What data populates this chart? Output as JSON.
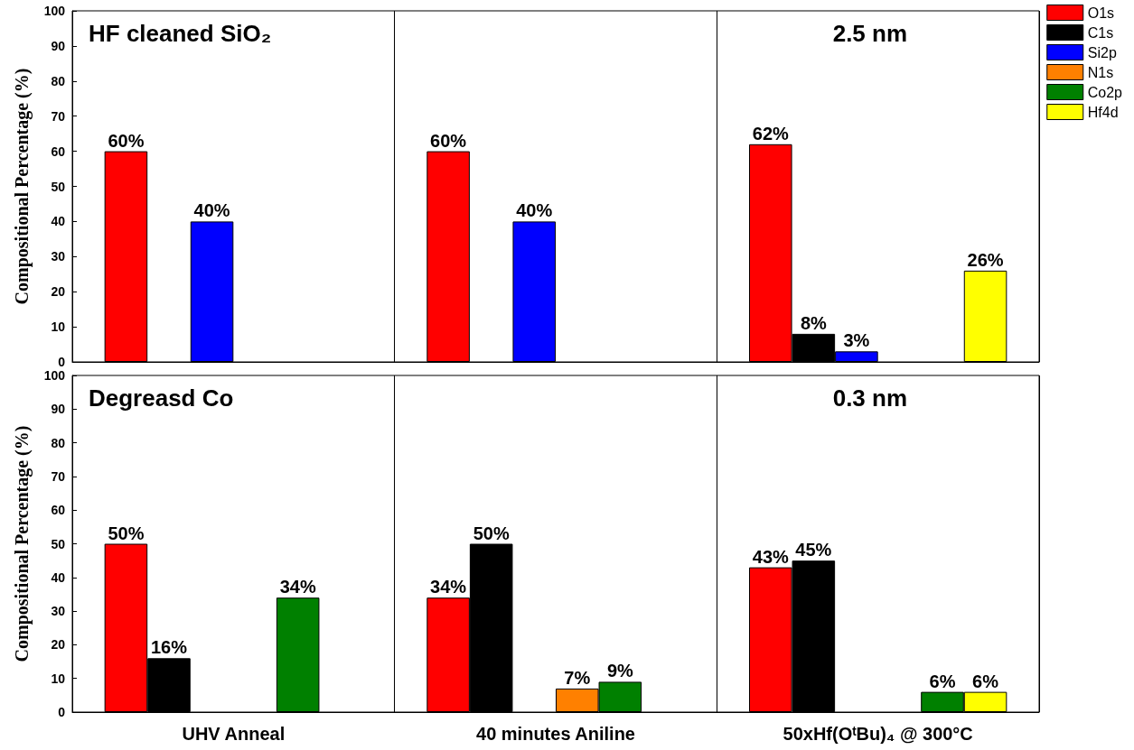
{
  "chart_data": [
    {
      "type": "bar",
      "ylabel": "Compositional Percentage (%)",
      "categories": [
        null,
        null,
        null
      ],
      "annotations": [
        "HF cleaned SiO₂",
        "2.5 nm"
      ],
      "series": [
        {
          "name": "O1s",
          "color": "#ff0000",
          "values": [
            60,
            60,
            62
          ],
          "value_labels": [
            "60%",
            "60%",
            "62%"
          ]
        },
        {
          "name": "C1s",
          "color": "#000000",
          "values": [
            null,
            null,
            8
          ],
          "value_labels": [
            null,
            null,
            "8%"
          ]
        },
        {
          "name": "Si2p",
          "color": "#0000ff",
          "values": [
            40,
            40,
            3
          ],
          "value_labels": [
            "40%",
            "40%",
            "3%"
          ]
        },
        {
          "name": "N1s",
          "color": "#ff8000",
          "values": [
            null,
            null,
            null
          ]
        },
        {
          "name": "Co2p",
          "color": "#008000",
          "values": [
            null,
            null,
            null
          ]
        },
        {
          "name": "Hf4d",
          "color": "#ffff00",
          "values": [
            null,
            null,
            26
          ],
          "value_labels": [
            null,
            null,
            "26%"
          ]
        }
      ],
      "ylim": [
        0,
        100
      ],
      "yticks": [
        0,
        10,
        20,
        30,
        40,
        50,
        60,
        70,
        80,
        90,
        100
      ],
      "grid": "x",
      "legend": "right",
      "tick_labels": "y"
    },
    {
      "type": "bar",
      "ylabel": "Compositional Percentage (%)",
      "categories": [
        "UHV Anneal",
        "40 minutes Aniline",
        "50xHf(OᵗBu)₄ @ 300°C"
      ],
      "annotations": [
        "Degreasd Co",
        "0.3 nm"
      ],
      "series": [
        {
          "color": "#ff0000",
          "values": [
            50,
            34,
            43
          ],
          "value_labels": [
            "50%",
            "34%",
            "43%"
          ]
        },
        {
          "color": "#000000",
          "values": [
            16,
            50,
            45
          ],
          "value_labels": [
            "16%",
            "50%",
            "45%"
          ]
        },
        {
          "color": "#0000ff",
          "values": [
            null,
            null,
            null
          ]
        },
        {
          "color": "#ff8000",
          "values": [
            null,
            7,
            null
          ],
          "value_labels": [
            null,
            "7%",
            null
          ]
        },
        {
          "color": "#008000",
          "values": [
            34,
            9,
            6
          ],
          "value_labels": [
            "34%",
            "9%",
            "6%"
          ]
        },
        {
          "color": "#ffff00",
          "values": [
            null,
            null,
            6
          ],
          "value_labels": [
            null,
            null,
            "6%"
          ]
        }
      ],
      "ylim": [
        0,
        100
      ],
      "yticks": [
        0,
        10,
        20,
        30,
        40,
        50,
        60,
        70,
        80,
        90,
        100
      ],
      "grid": "x",
      "legend": false
    }
  ]
}
